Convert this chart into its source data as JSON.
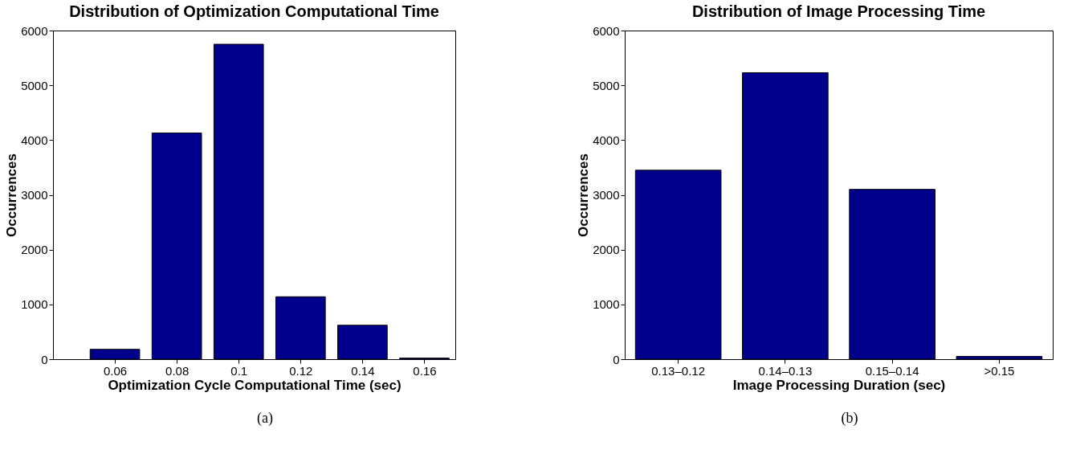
{
  "chart_data": [
    {
      "type": "bar",
      "title": "Distribution of Optimization Computational Time",
      "xlabel": "Optimization Cycle Computational Time (sec)",
      "ylabel": "Occurrences",
      "x": [
        0.06,
        0.08,
        0.1,
        0.12,
        0.14,
        0.16
      ],
      "values": [
        180,
        4130,
        5750,
        1140,
        620,
        20
      ],
      "color": "#00008b",
      "xlim": [
        0.04,
        0.17
      ],
      "xticks": [
        0.06,
        0.08,
        0.1,
        0.12,
        0.14,
        0.16
      ],
      "ylim": [
        0,
        6000
      ],
      "yticks": [
        0,
        1000,
        2000,
        3000,
        4000,
        5000,
        6000
      ],
      "grid": false,
      "annotations": [
        "(a)"
      ]
    },
    {
      "type": "bar",
      "title": "Distribution of Image Processing Time",
      "xlabel": "Image Processing Duration (sec)",
      "ylabel": "Occurrences",
      "categories": [
        "0.13–0.12",
        "0.14–0.13",
        "0.15–0.14",
        ">0.15"
      ],
      "values": [
        3450,
        5230,
        3100,
        50
      ],
      "color": "#00008b",
      "ylim": [
        0,
        6000
      ],
      "yticks": [
        0,
        1000,
        2000,
        3000,
        4000,
        5000,
        6000
      ],
      "grid": false,
      "annotations": [
        "(b)"
      ]
    }
  ]
}
